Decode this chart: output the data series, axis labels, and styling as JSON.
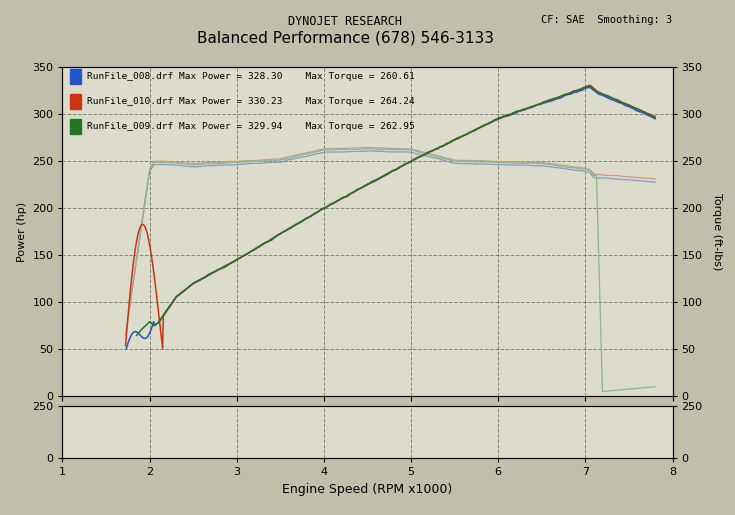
{
  "title_main": "DYNOJET RESEARCH",
  "title_cf": "CF: SAE  Smoothing: 3",
  "title_sub": "Balanced Performance (678) 546-3133",
  "xlabel": "Engine Speed (RPM x1000)",
  "ylabel_left": "Power (hp)",
  "ylabel_right": "Torque (ft-lbs)",
  "xmin": 1,
  "xmax": 8,
  "ymin": 0,
  "ymax": 350,
  "yticks": [
    0,
    50,
    100,
    150,
    200,
    250,
    300,
    350
  ],
  "xticks": [
    1,
    2,
    3,
    4,
    5,
    6,
    7,
    8
  ],
  "runs": [
    {
      "name": "RunFile_008.drf",
      "max_power": 328.3,
      "max_torque": 260.61,
      "power_color": "#2255cc",
      "torque_color": "#8899cc"
    },
    {
      "name": "RunFile_010.drf",
      "max_power": 330.23,
      "max_torque": 264.24,
      "power_color": "#cc3311",
      "torque_color": "#cc9988"
    },
    {
      "name": "RunFile_009.drf",
      "max_power": 329.94,
      "max_torque": 262.95,
      "power_color": "#227722",
      "torque_color": "#88bb88"
    }
  ],
  "bg_color": "#c0bfaa",
  "plot_bg": "#dddccc",
  "grid_color": "#000000",
  "grid_style": "--",
  "bot_ymax": 250
}
